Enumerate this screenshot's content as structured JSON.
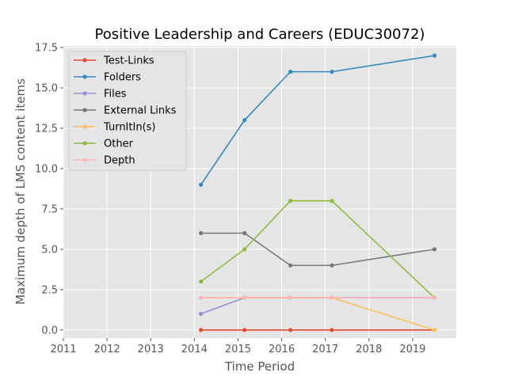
{
  "chart_data": {
    "type": "line",
    "title": "Positive Leadership and Careers (EDUC30072)",
    "xlabel": "Time Period",
    "ylabel": "Maximum depth of LMS content items",
    "xlim": [
      2011,
      2020
    ],
    "ylim": [
      -0.5,
      17.6
    ],
    "xticks": [
      2011,
      2012,
      2013,
      2014,
      2015,
      2016,
      2017,
      2018,
      2019
    ],
    "yticks": [
      0.0,
      2.5,
      5.0,
      7.5,
      10.0,
      12.5,
      15.0,
      17.5
    ],
    "ytick_labels": [
      "0.0",
      "2.5",
      "5.0",
      "7.5",
      "10.0",
      "12.5",
      "15.0",
      "17.5"
    ],
    "x": [
      2014.15,
      2015.15,
      2016.2,
      2017.15,
      2019.5
    ],
    "grid": true,
    "legend_position": "top-left",
    "series": [
      {
        "name": "Test-Links",
        "color": "#E24A33",
        "values": [
          0,
          0,
          0,
          0,
          0
        ]
      },
      {
        "name": "Folders",
        "color": "#348ABD",
        "values": [
          9,
          13,
          16,
          16,
          17
        ]
      },
      {
        "name": "Files",
        "color": "#988ED5",
        "values": [
          1,
          2,
          2,
          2,
          2
        ]
      },
      {
        "name": "External Links",
        "color": "#777777",
        "values": [
          6,
          6,
          4,
          4,
          5
        ]
      },
      {
        "name": "TurnItIn(s)",
        "color": "#FBC15E",
        "values": [
          2,
          2,
          2,
          2,
          0
        ]
      },
      {
        "name": "Other",
        "color": "#8EBA42",
        "values": [
          3,
          5,
          8,
          8,
          2
        ]
      },
      {
        "name": "Depth",
        "color": "#FFB5B8",
        "values": [
          2,
          2,
          2,
          2,
          2
        ]
      }
    ]
  }
}
